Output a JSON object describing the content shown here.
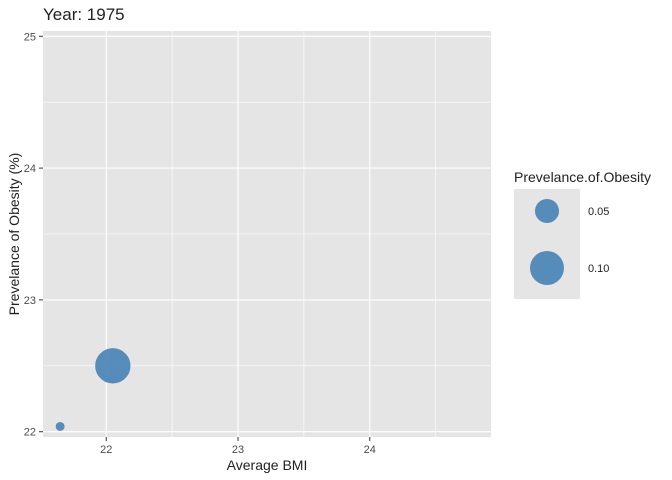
{
  "chart_data": {
    "type": "scatter",
    "title": "Year: 1975",
    "xlabel": "Average BMI",
    "ylabel": "Prevelance of Obesity (%)",
    "xlim": [
      21.52,
      24.92
    ],
    "ylim": [
      21.96,
      25.04
    ],
    "x_ticks": [
      22,
      23,
      24
    ],
    "y_ticks": [
      22,
      23,
      24,
      25
    ],
    "x_tick_labels": [
      "22",
      "23",
      "24"
    ],
    "y_tick_labels": [
      "22",
      "23",
      "24",
      "25"
    ],
    "grid": true,
    "point_color": "#4682B4",
    "panel_color": "#E5E5E5",
    "grid_color": "#FFFFFF",
    "points": [
      {
        "x": 21.65,
        "y": 22.04,
        "size_value": 0.005
      },
      {
        "x": 22.05,
        "y": 22.5,
        "size_value": 0.078
      }
    ],
    "legend": {
      "title": "Prevelance.of.Obesity",
      "position": "right",
      "entries": [
        {
          "label": "0.05",
          "value": 0.05
        },
        {
          "label": "0.10",
          "value": 0.1
        }
      ]
    }
  }
}
